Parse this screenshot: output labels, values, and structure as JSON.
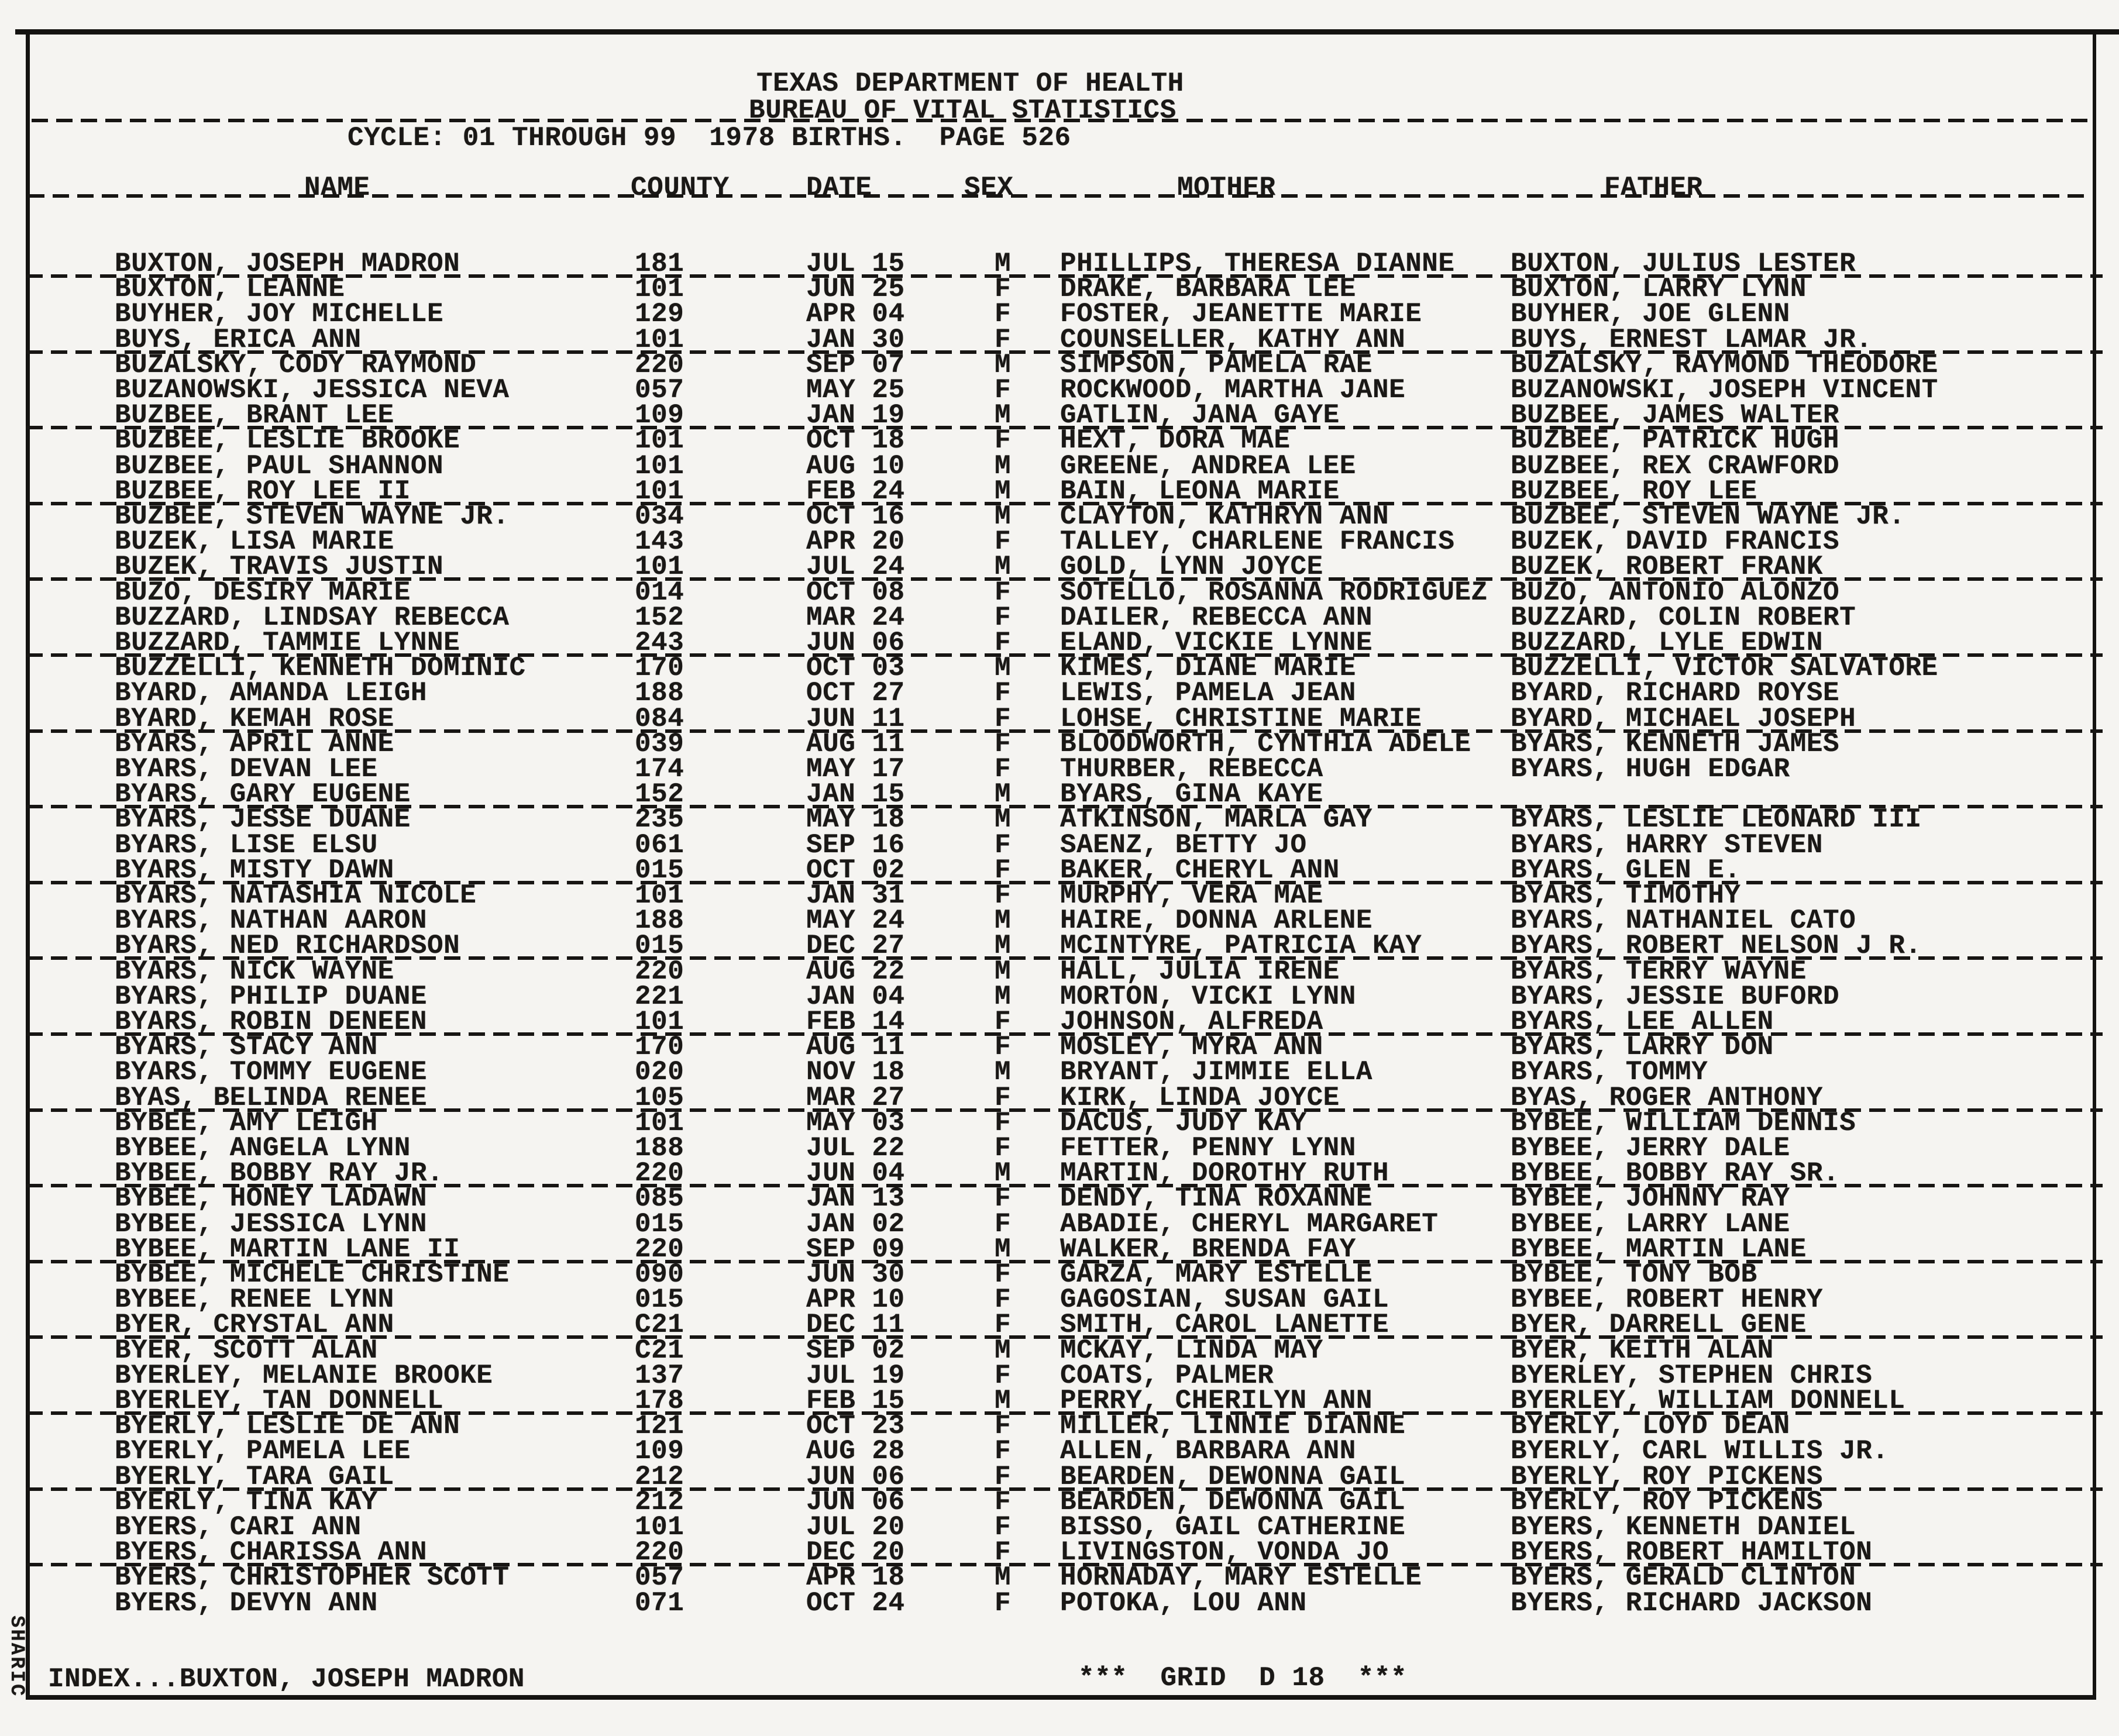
{
  "document": {
    "agency": "TEXAS DEPARTMENT OF HEALTH",
    "bureau": "BUREAU OF VITAL STATISTICS",
    "cycle_line": "CYCLE: 01 THROUGH 99  1978 BIRTHS.  PAGE 526"
  },
  "table": {
    "columns": [
      "NAME",
      "COUNTY",
      "DATE",
      "SEX",
      "MOTHER",
      "FATHER"
    ],
    "rows": [
      {
        "name": "BUXTON, JOSEPH MADRON",
        "county": "181",
        "date": "JUL 15",
        "sex": "M",
        "mother": "PHILLIPS, THERESA DIANNE",
        "father": "BUXTON, JULIUS LESTER"
      },
      {
        "name": "BUXTON, LEANNE",
        "county": "101",
        "date": "JUN 25",
        "sex": "F",
        "mother": "DRAKE, BARBARA LEE",
        "father": "BUXTON, LARRY LYNN"
      },
      {
        "name": "BUYHER, JOY MICHELLE",
        "county": "129",
        "date": "APR 04",
        "sex": "F",
        "mother": "FOSTER, JEANETTE MARIE",
        "father": "BUYHER, JOE GLENN"
      },
      {
        "name": "BUYS, ERICA ANN",
        "county": "101",
        "date": "JAN 30",
        "sex": "F",
        "mother": "COUNSELLER, KATHY ANN",
        "father": "BUYS, ERNEST LAMAR JR."
      },
      {
        "name": "BUZALSKY, CODY RAYMOND",
        "county": "220",
        "date": "SEP 07",
        "sex": "M",
        "mother": "SIMPSON, PAMELA RAE",
        "father": "BUZALSKY, RAYMOND THEODORE"
      },
      {
        "name": "BUZANOWSKI, JESSICA NEVA",
        "county": "057",
        "date": "MAY 25",
        "sex": "F",
        "mother": "ROCKWOOD, MARTHA JANE",
        "father": "BUZANOWSKI, JOSEPH VINCENT"
      },
      {
        "name": "BUZBEE, BRANT LEE",
        "county": "109",
        "date": "JAN 19",
        "sex": "M",
        "mother": "GATLIN, JANA GAYE",
        "father": "BUZBEE, JAMES WALTER"
      },
      {
        "name": "BUZBEE, LESLIE BROOKE",
        "county": "101",
        "date": "OCT 18",
        "sex": "F",
        "mother": "HEXT, DORA MAE",
        "father": "BUZBEE, PATRICK HUGH"
      },
      {
        "name": "BUZBEE, PAUL SHANNON",
        "county": "101",
        "date": "AUG 10",
        "sex": "M",
        "mother": "GREENE, ANDREA LEE",
        "father": "BUZBEE, REX CRAWFORD"
      },
      {
        "name": "BUZBEE, ROY LEE II",
        "county": "101",
        "date": "FEB 24",
        "sex": "M",
        "mother": "BAIN, LEONA MARIE",
        "father": "BUZBEE, ROY LEE"
      },
      {
        "name": "BUZBEE, STEVEN WAYNE JR.",
        "county": "034",
        "date": "OCT 16",
        "sex": "M",
        "mother": "CLAYTON, KATHRYN ANN",
        "father": "BUZBEE, STEVEN WAYNE JR."
      },
      {
        "name": "BUZEK, LISA MARIE",
        "county": "143",
        "date": "APR 20",
        "sex": "F",
        "mother": "TALLEY, CHARLENE FRANCIS",
        "father": "BUZEK, DAVID FRANCIS"
      },
      {
        "name": "BUZEK, TRAVIS JUSTIN",
        "county": "101",
        "date": "JUL 24",
        "sex": "M",
        "mother": "GOLD, LYNN JOYCE",
        "father": "BUZEK, ROBERT FRANK"
      },
      {
        "name": "BUZO, DESIRY MARIE",
        "county": "014",
        "date": "OCT 08",
        "sex": "F",
        "mother": "SOTELLO, ROSANNA RODRIGUEZ",
        "father": "BUZO, ANTONIO ALONZO"
      },
      {
        "name": "BUZZARD, LINDSAY REBECCA",
        "county": "152",
        "date": "MAR 24",
        "sex": "F",
        "mother": "DAILER, REBECCA ANN",
        "father": "BUZZARD, COLIN ROBERT"
      },
      {
        "name": "BUZZARD, TAMMIE LYNNE",
        "county": "243",
        "date": "JUN 06",
        "sex": "F",
        "mother": "ELAND, VICKIE LYNNE",
        "father": "BUZZARD, LYLE EDWIN"
      },
      {
        "name": "BUZZELLI, KENNETH DOMINIC",
        "county": "170",
        "date": "OCT 03",
        "sex": "M",
        "mother": "KIMES, DIANE MARIE",
        "father": "BUZZELLI, VICTOR SALVATORE"
      },
      {
        "name": "BYARD, AMANDA LEIGH",
        "county": "188",
        "date": "OCT 27",
        "sex": "F",
        "mother": "LEWIS, PAMELA JEAN",
        "father": "BYARD, RICHARD ROYSE"
      },
      {
        "name": "BYARD, KEMAH ROSE",
        "county": "084",
        "date": "JUN 11",
        "sex": "F",
        "mother": "LOHSE, CHRISTINE MARIE",
        "father": "BYARD, MICHAEL JOSEPH"
      },
      {
        "name": "BYARS, APRIL ANNE",
        "county": "039",
        "date": "AUG 11",
        "sex": "F",
        "mother": "BLOODWORTH, CYNTHIA ADELE",
        "father": "BYARS, KENNETH JAMES"
      },
      {
        "name": "BYARS, DEVAN LEE",
        "county": "174",
        "date": "MAY 17",
        "sex": "F",
        "mother": "THURBER, REBECCA",
        "father": "BYARS, HUGH EDGAR"
      },
      {
        "name": "BYARS, GARY EUGENE",
        "county": "152",
        "date": "JAN 15",
        "sex": "M",
        "mother": "BYARS, GINA KAYE",
        "father": ""
      },
      {
        "name": "BYARS, JESSE DUANE",
        "county": "235",
        "date": "MAY 18",
        "sex": "M",
        "mother": "ATKINSON, MARLA GAY",
        "father": "BYARS, LESLIE LEONARD III"
      },
      {
        "name": "BYARS, LISE ELSU",
        "county": "061",
        "date": "SEP 16",
        "sex": "F",
        "mother": "SAENZ, BETTY JO",
        "father": "BYARS, HARRY STEVEN"
      },
      {
        "name": "BYARS, MISTY DAWN",
        "county": "015",
        "date": "OCT 02",
        "sex": "F",
        "mother": "BAKER, CHERYL ANN",
        "father": "BYARS, GLEN E."
      },
      {
        "name": "BYARS, NATASHIA NICOLE",
        "county": "101",
        "date": "JAN 31",
        "sex": "F",
        "mother": "MURPHY, VERA MAE",
        "father": "BYARS, TIMOTHY"
      },
      {
        "name": "BYARS, NATHAN AARON",
        "county": "188",
        "date": "MAY 24",
        "sex": "M",
        "mother": "HAIRE, DONNA ARLENE",
        "father": "BYARS, NATHANIEL CATO"
      },
      {
        "name": "BYARS, NED RICHARDSON",
        "county": "015",
        "date": "DEC 27",
        "sex": "M",
        "mother": "MCINTYRE, PATRICIA KAY",
        "father": "BYARS, ROBERT NELSON J R."
      },
      {
        "name": "BYARS, NICK WAYNE",
        "county": "220",
        "date": "AUG 22",
        "sex": "M",
        "mother": "HALL, JULIA IRENE",
        "father": "BYARS, TERRY WAYNE"
      },
      {
        "name": "BYARS, PHILIP DUANE",
        "county": "221",
        "date": "JAN 04",
        "sex": "M",
        "mother": "MORTON, VICKI LYNN",
        "father": "BYARS, JESSIE BUFORD"
      },
      {
        "name": "BYARS, ROBIN DENEEN",
        "county": "101",
        "date": "FEB 14",
        "sex": "F",
        "mother": "JOHNSON, ALFREDA",
        "father": "BYARS, LEE ALLEN"
      },
      {
        "name": "BYARS, STACY ANN",
        "county": "170",
        "date": "AUG 11",
        "sex": "F",
        "mother": "MOSLEY, MYRA ANN",
        "father": "BYARS, LARRY DON"
      },
      {
        "name": "BYARS, TOMMY EUGENE",
        "county": "020",
        "date": "NOV 18",
        "sex": "M",
        "mother": "BRYANT, JIMMIE ELLA",
        "father": "BYARS, TOMMY"
      },
      {
        "name": "BYAS, BELINDA RENEE",
        "county": "105",
        "date": "MAR 27",
        "sex": "F",
        "mother": "KIRK, LINDA JOYCE",
        "father": "BYAS, ROGER ANTHONY"
      },
      {
        "name": "BYBEE, AMY LEIGH",
        "county": "101",
        "date": "MAY 03",
        "sex": "F",
        "mother": "DACUS, JUDY KAY",
        "father": "BYBEE, WILLIAM DENNIS"
      },
      {
        "name": "BYBEE, ANGELA LYNN",
        "county": "188",
        "date": "JUL 22",
        "sex": "F",
        "mother": "FETTER, PENNY LYNN",
        "father": "BYBEE, JERRY DALE"
      },
      {
        "name": "BYBEE, BOBBY RAY JR.",
        "county": "220",
        "date": "JUN 04",
        "sex": "M",
        "mother": "MARTIN, DOROTHY RUTH",
        "father": "BYBEE, BOBBY RAY SR."
      },
      {
        "name": "BYBEE, HONEY LADAWN",
        "county": "085",
        "date": "JAN 13",
        "sex": "F",
        "mother": "DENDY, TINA ROXANNE",
        "father": "BYBEE, JOHNNY RAY"
      },
      {
        "name": "BYBEE, JESSICA LYNN",
        "county": "015",
        "date": "JAN 02",
        "sex": "F",
        "mother": "ABADIE, CHERYL MARGARET",
        "father": "BYBEE, LARRY LANE"
      },
      {
        "name": "BYBEE, MARTIN LANE II",
        "county": "220",
        "date": "SEP 09",
        "sex": "M",
        "mother": "WALKER, BRENDA FAY",
        "father": "BYBEE, MARTIN LANE"
      },
      {
        "name": "BYBEE, MICHELE CHRISTINE",
        "county": "090",
        "date": "JUN 30",
        "sex": "F",
        "mother": "GARZA, MARY ESTELLE",
        "father": "BYBEE, TONY BOB"
      },
      {
        "name": "BYBEE, RENEE LYNN",
        "county": "015",
        "date": "APR 10",
        "sex": "F",
        "mother": "GAGOSIAN, SUSAN GAIL",
        "father": "BYBEE, ROBERT HENRY"
      },
      {
        "name": "BYER, CRYSTAL ANN",
        "county": "C21",
        "date": "DEC 11",
        "sex": "F",
        "mother": "SMITH, CAROL LANETTE",
        "father": "BYER, DARRELL GENE"
      },
      {
        "name": "BYER, SCOTT ALAN",
        "county": "C21",
        "date": "SEP 02",
        "sex": "M",
        "mother": "MCKAY, LINDA MAY",
        "father": "BYER, KEITH ALAN"
      },
      {
        "name": "BYERLEY, MELANIE BROOKE",
        "county": "137",
        "date": "JUL 19",
        "sex": "F",
        "mother": "COATS, PALMER",
        "father": "BYERLEY, STEPHEN CHRIS"
      },
      {
        "name": "BYERLEY, TAN DONNELL",
        "county": "178",
        "date": "FEB 15",
        "sex": "M",
        "mother": "PERRY, CHERILYN ANN",
        "father": "BYERLEY, WILLIAM DONNELL"
      },
      {
        "name": "BYERLY, LESLIE DE ANN",
        "county": "121",
        "date": "OCT 23",
        "sex": "F",
        "mother": "MILLER, LINNIE DIANNE",
        "father": "BYERLY, LOYD DEAN"
      },
      {
        "name": "BYERLY, PAMELA LEE",
        "county": "109",
        "date": "AUG 28",
        "sex": "F",
        "mother": "ALLEN, BARBARA ANN",
        "father": "BYERLY, CARL WILLIS JR."
      },
      {
        "name": "BYERLY, TARA GAIL",
        "county": "212",
        "date": "JUN 06",
        "sex": "F",
        "mother": "BEARDEN, DEWONNA GAIL",
        "father": "BYERLY, ROY PICKENS"
      },
      {
        "name": "BYERLY, TINA KAY",
        "county": "212",
        "date": "JUN 06",
        "sex": "F",
        "mother": "BEARDEN, DEWONNA GAIL",
        "father": "BYERLY, ROY PICKENS"
      },
      {
        "name": "BYERS, CARI ANN",
        "county": "101",
        "date": "JUL 20",
        "sex": "F",
        "mother": "BISSO, GAIL CATHERINE",
        "father": "BYERS, KENNETH DANIEL"
      },
      {
        "name": "BYERS, CHARISSA ANN",
        "county": "220",
        "date": "DEC 20",
        "sex": "F",
        "mother": "LIVINGSTON, VONDA JO",
        "father": "BYERS, ROBERT HAMILTON"
      },
      {
        "name": "BYERS, CHRISTOPHER SCOTT",
        "county": "057",
        "date": "APR 18",
        "sex": "M",
        "mother": "HORNADAY, MARY ESTELLE",
        "father": "BYERS, GERALD CLINTON"
      },
      {
        "name": "BYERS, DEVYN ANN",
        "county": "071",
        "date": "OCT 24",
        "sex": "F",
        "mother": "POTOKA, LOU ANN",
        "father": "BYERS, RICHARD JACKSON"
      }
    ]
  },
  "footer": {
    "index_line": "INDEX...BUXTON, JOSEPH MADRON",
    "grid_line": "***  GRID  D 18  ***",
    "side_label": "SHARIC"
  },
  "colors": {
    "paper": "#f5f4f1",
    "ink": "#1a1816"
  }
}
